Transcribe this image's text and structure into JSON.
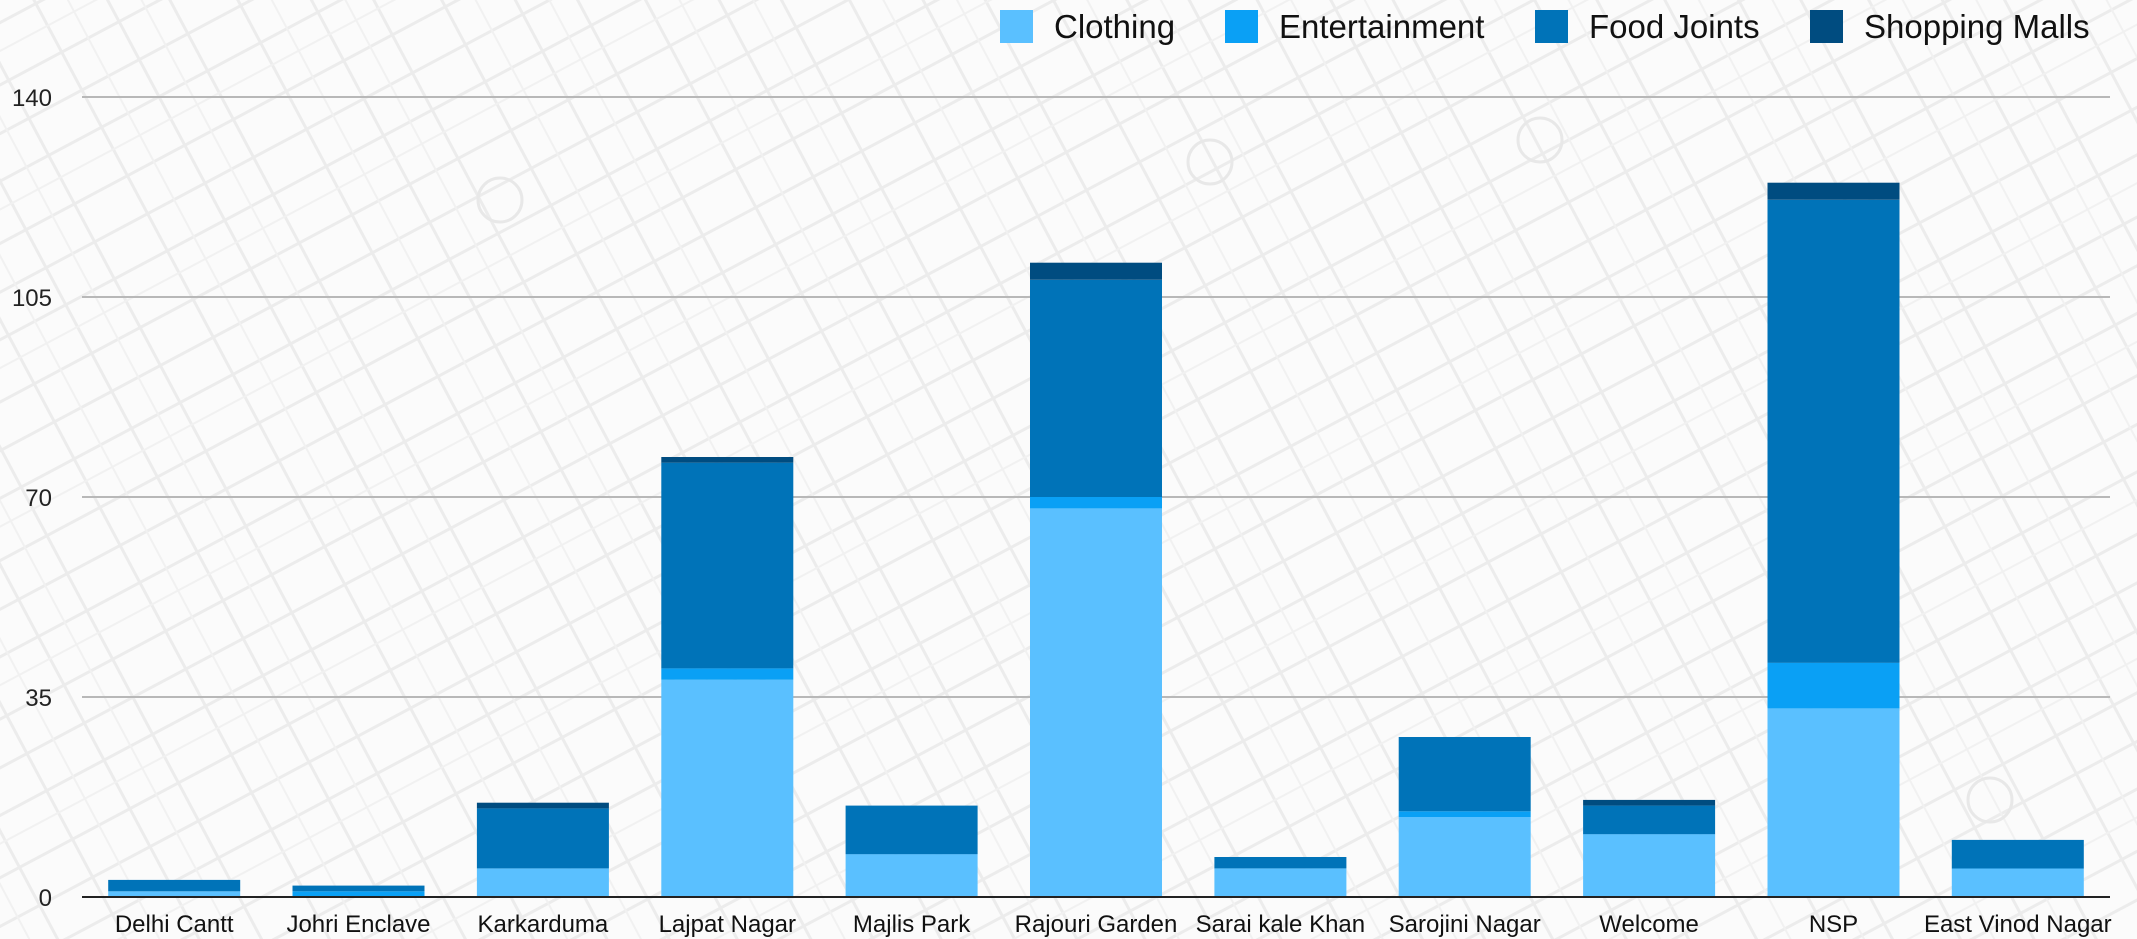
{
  "chart_data": {
    "type": "bar",
    "stacked": true,
    "title": "",
    "xlabel": "",
    "ylabel": "",
    "ylim": [
      0,
      140
    ],
    "y_ticks": [
      0,
      35,
      70,
      105,
      140
    ],
    "grid": true,
    "legend_position": "top-right",
    "categories": [
      "Delhi Cantt",
      "Johri Enclave",
      "Karkarduma",
      "Lajpat Nagar",
      "Majlis Park",
      "Rajouri Garden",
      "Sarai kale Khan",
      "Sarojini Nagar",
      "Welcome",
      "NSP",
      "East Vinod Nagar"
    ],
    "series": [
      {
        "name": "Clothing",
        "color": "#5ac0ff",
        "values": [
          1,
          0,
          5,
          38,
          7.5,
          68,
          5,
          14,
          11,
          33,
          5
        ]
      },
      {
        "name": "Entertainment",
        "color": "#0aa0f5",
        "values": [
          0,
          1,
          0,
          2,
          0,
          2,
          0,
          1,
          0,
          8,
          0
        ]
      },
      {
        "name": "Food Joints",
        "color": "#0073b8",
        "values": [
          2,
          1,
          10.5,
          36,
          8.5,
          38,
          2,
          13,
          5,
          81,
          5
        ]
      },
      {
        "name": "Shopping Malls",
        "color": "#004c80",
        "values": [
          0,
          0,
          1,
          1,
          0,
          3,
          0,
          0,
          1,
          3,
          0
        ]
      }
    ]
  }
}
